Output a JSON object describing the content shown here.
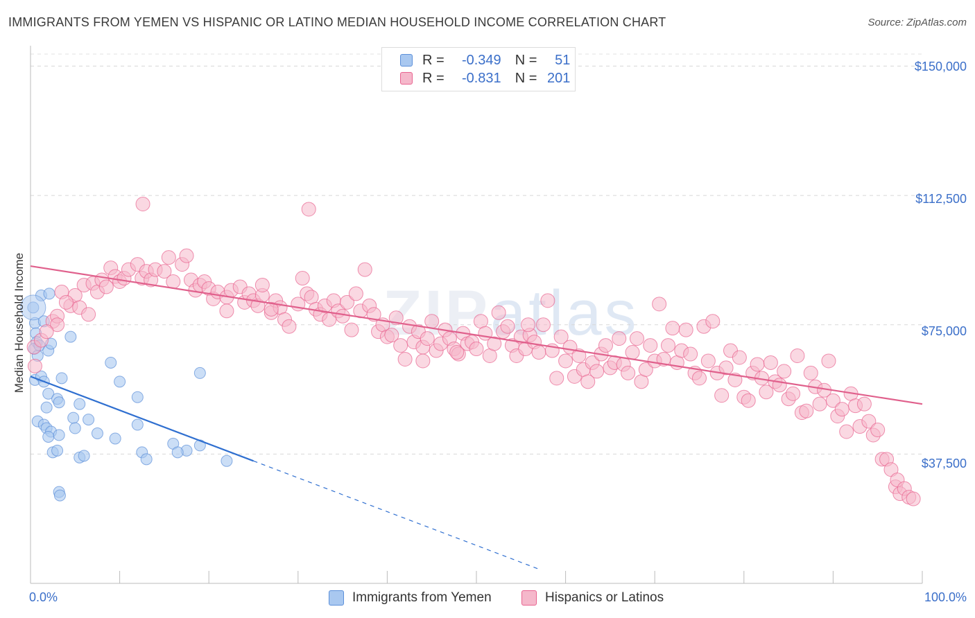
{
  "title": "IMMIGRANTS FROM YEMEN VS HISPANIC OR LATINO MEDIAN HOUSEHOLD INCOME CORRELATION CHART",
  "source": "Source: ZipAtlas.com",
  "watermark": {
    "zip": "ZIP",
    "atlas": "atlas"
  },
  "legend": {
    "rows": [
      {
        "r_label": "R =",
        "r_value": "-0.349",
        "n_label": "N =",
        "n_value": "51",
        "color": "#a9c8f0"
      },
      {
        "r_label": "R =",
        "r_value": "-0.831",
        "n_label": "N =",
        "n_value": "201",
        "color": "#f5b8cb"
      }
    ]
  },
  "chart_data": {
    "type": "scatter",
    "title": "IMMIGRANTS FROM YEMEN VS HISPANIC OR LATINO MEDIAN HOUSEHOLD INCOME CORRELATION CHART",
    "xlabel": "",
    "ylabel": "Median Household Income",
    "xlim": [
      0,
      100
    ],
    "ylim": [
      0,
      150000
    ],
    "x_tick_labels": [
      "0.0%",
      "100.0%"
    ],
    "y_ticks": [
      37500,
      75000,
      112500,
      150000
    ],
    "y_tick_labels": [
      "$37,500",
      "$75,000",
      "$112,500",
      "$150,000"
    ],
    "grid": "horizontal dashed",
    "legend_placement": "bottom",
    "series": [
      {
        "name": "Immigrants from Yemen",
        "color": "#5b8fd9",
        "fill": "#a9c8f0",
        "trend": {
          "x0": 0,
          "y0": 60000,
          "x1": 25,
          "y1": 35500,
          "dashed_to_x": 57
        },
        "points": [
          [
            0.3,
            80000
          ],
          [
            0.5,
            75500
          ],
          [
            0.6,
            72500
          ],
          [
            0.7,
            70000
          ],
          [
            0.4,
            68000
          ],
          [
            0.8,
            66000
          ],
          [
            1.0,
            69000
          ],
          [
            1.2,
            83500
          ],
          [
            1.5,
            76000
          ],
          [
            2.0,
            67500
          ],
          [
            2.3,
            69500
          ],
          [
            2.1,
            84000
          ],
          [
            4.5,
            71500
          ],
          [
            0.5,
            59000
          ],
          [
            1.2,
            60000
          ],
          [
            1.5,
            58500
          ],
          [
            3.5,
            59500
          ],
          [
            2.0,
            55000
          ],
          [
            1.8,
            51000
          ],
          [
            3.0,
            53500
          ],
          [
            3.2,
            52500
          ],
          [
            5.5,
            52000
          ],
          [
            0.8,
            47000
          ],
          [
            1.5,
            46000
          ],
          [
            1.8,
            45000
          ],
          [
            2.3,
            44000
          ],
          [
            2.0,
            42500
          ],
          [
            3.2,
            43000
          ],
          [
            4.8,
            48000
          ],
          [
            5.0,
            45000
          ],
          [
            6.5,
            47500
          ],
          [
            7.5,
            43500
          ],
          [
            9.5,
            42000
          ],
          [
            12.0,
            46000
          ],
          [
            2.5,
            38000
          ],
          [
            3.0,
            38500
          ],
          [
            5.5,
            36500
          ],
          [
            6.0,
            37000
          ],
          [
            12.5,
            38000
          ],
          [
            13.0,
            36000
          ],
          [
            17.5,
            38500
          ],
          [
            22.0,
            35500
          ],
          [
            3.2,
            26500
          ],
          [
            3.3,
            25500
          ],
          [
            9.0,
            64000
          ],
          [
            10.0,
            58500
          ],
          [
            12.0,
            54000
          ],
          [
            16.0,
            40500
          ],
          [
            16.5,
            38000
          ],
          [
            19.0,
            40000
          ],
          [
            19.0,
            61000
          ]
        ]
      },
      {
        "name": "Hispanics or Latinos",
        "color": "#e8628f",
        "fill": "#f5b8cb",
        "trend": {
          "x0": 0,
          "y0": 92000,
          "x1": 100,
          "y1": 52000
        },
        "points": [
          [
            0.4,
            68500
          ],
          [
            0.5,
            63000
          ],
          [
            1.2,
            70500
          ],
          [
            2.5,
            76000
          ],
          [
            3.0,
            77500
          ],
          [
            3.5,
            84500
          ],
          [
            4.5,
            80500
          ],
          [
            5.0,
            83500
          ],
          [
            5.5,
            80000
          ],
          [
            6.0,
            86500
          ],
          [
            7.0,
            87000
          ],
          [
            7.5,
            84500
          ],
          [
            8.0,
            88000
          ],
          [
            8.5,
            86000
          ],
          [
            9.0,
            91500
          ],
          [
            9.5,
            89000
          ],
          [
            10.0,
            87500
          ],
          [
            10.5,
            88500
          ],
          [
            11.0,
            91000
          ],
          [
            12.0,
            92500
          ],
          [
            12.5,
            88500
          ],
          [
            13.0,
            90500
          ],
          [
            13.5,
            88000
          ],
          [
            14.0,
            91000
          ],
          [
            15.0,
            90500
          ],
          [
            15.5,
            94500
          ],
          [
            16.0,
            87500
          ],
          [
            17.0,
            92500
          ],
          [
            17.5,
            95000
          ],
          [
            18.0,
            88000
          ],
          [
            18.5,
            85000
          ],
          [
            19.0,
            86500
          ],
          [
            19.5,
            87500
          ],
          [
            20.0,
            85500
          ],
          [
            20.5,
            82500
          ],
          [
            21.0,
            84500
          ],
          [
            22.0,
            83000
          ],
          [
            22.5,
            85000
          ],
          [
            23.5,
            86000
          ],
          [
            24.0,
            81500
          ],
          [
            24.5,
            84000
          ],
          [
            25.0,
            82000
          ],
          [
            25.5,
            80500
          ],
          [
            26.0,
            83500
          ],
          [
            27.0,
            78500
          ],
          [
            27.5,
            82000
          ],
          [
            28.0,
            80000
          ],
          [
            28.5,
            76500
          ],
          [
            29.0,
            74500
          ],
          [
            30.0,
            81000
          ],
          [
            30.5,
            88500
          ],
          [
            31.0,
            84000
          ],
          [
            31.5,
            83000
          ],
          [
            32.0,
            79500
          ],
          [
            32.5,
            78000
          ],
          [
            33.0,
            80500
          ],
          [
            33.5,
            76500
          ],
          [
            34.0,
            82000
          ],
          [
            34.5,
            79000
          ],
          [
            35.0,
            77500
          ],
          [
            35.5,
            81500
          ],
          [
            36.0,
            73500
          ],
          [
            36.5,
            84000
          ],
          [
            37.0,
            79000
          ],
          [
            37.5,
            91000
          ],
          [
            38.0,
            80500
          ],
          [
            38.5,
            78000
          ],
          [
            39.0,
            73000
          ],
          [
            39.5,
            75000
          ],
          [
            40.0,
            71500
          ],
          [
            40.5,
            72000
          ],
          [
            41.0,
            77000
          ],
          [
            41.5,
            69000
          ],
          [
            42.0,
            65000
          ],
          [
            42.5,
            74500
          ],
          [
            43.0,
            70000
          ],
          [
            43.5,
            73000
          ],
          [
            44.0,
            68500
          ],
          [
            44.5,
            71000
          ],
          [
            45.0,
            76000
          ],
          [
            45.5,
            67500
          ],
          [
            46.0,
            69500
          ],
          [
            46.5,
            73500
          ],
          [
            47.0,
            71000
          ],
          [
            47.5,
            68000
          ],
          [
            48.0,
            66500
          ],
          [
            48.5,
            72500
          ],
          [
            49.0,
            69500
          ],
          [
            49.5,
            70000
          ],
          [
            50.0,
            68000
          ],
          [
            50.5,
            76000
          ],
          [
            51.0,
            72500
          ],
          [
            51.5,
            66000
          ],
          [
            52.0,
            69500
          ],
          [
            52.5,
            78500
          ],
          [
            53.0,
            73000
          ],
          [
            53.5,
            74500
          ],
          [
            54.0,
            69000
          ],
          [
            54.5,
            66000
          ],
          [
            55.0,
            71500
          ],
          [
            55.5,
            68000
          ],
          [
            56.0,
            72000
          ],
          [
            56.5,
            70000
          ],
          [
            57.0,
            67000
          ],
          [
            57.5,
            75000
          ],
          [
            58.0,
            82000
          ],
          [
            58.5,
            67500
          ],
          [
            59.0,
            59500
          ],
          [
            59.5,
            71500
          ],
          [
            60.0,
            64500
          ],
          [
            60.5,
            68500
          ],
          [
            61.0,
            60000
          ],
          [
            61.5,
            66000
          ],
          [
            62.0,
            62000
          ],
          [
            62.5,
            58500
          ],
          [
            63.0,
            64000
          ],
          [
            63.5,
            61500
          ],
          [
            64.0,
            66500
          ],
          [
            64.5,
            69000
          ],
          [
            65.0,
            62500
          ],
          [
            65.5,
            64000
          ],
          [
            66.0,
            71000
          ],
          [
            66.5,
            63500
          ],
          [
            67.0,
            61000
          ],
          [
            67.5,
            67000
          ],
          [
            68.0,
            71000
          ],
          [
            68.5,
            58500
          ],
          [
            69.0,
            62000
          ],
          [
            69.5,
            69000
          ],
          [
            70.0,
            64500
          ],
          [
            70.5,
            81000
          ],
          [
            71.0,
            65000
          ],
          [
            71.5,
            69000
          ],
          [
            72.0,
            74000
          ],
          [
            72.5,
            64000
          ],
          [
            73.0,
            67500
          ],
          [
            73.5,
            73500
          ],
          [
            74.0,
            66500
          ],
          [
            74.5,
            61000
          ],
          [
            75.0,
            59500
          ],
          [
            75.5,
            74500
          ],
          [
            76.0,
            64500
          ],
          [
            76.5,
            76000
          ],
          [
            77.0,
            61000
          ],
          [
            77.5,
            54500
          ],
          [
            78.0,
            62500
          ],
          [
            78.5,
            67500
          ],
          [
            79.0,
            59000
          ],
          [
            79.5,
            65500
          ],
          [
            80.0,
            54000
          ],
          [
            80.5,
            53000
          ],
          [
            81.0,
            61000
          ],
          [
            81.5,
            63500
          ],
          [
            82.0,
            59500
          ],
          [
            82.5,
            55500
          ],
          [
            83.0,
            64000
          ],
          [
            83.5,
            58500
          ],
          [
            84.0,
            57500
          ],
          [
            84.5,
            61500
          ],
          [
            85.0,
            53500
          ],
          [
            85.5,
            55000
          ],
          [
            86.0,
            66000
          ],
          [
            86.5,
            49500
          ],
          [
            87.0,
            50000
          ],
          [
            87.5,
            61000
          ],
          [
            88.0,
            57000
          ],
          [
            88.5,
            52000
          ],
          [
            89.0,
            56000
          ],
          [
            89.5,
            64500
          ],
          [
            90.0,
            53000
          ],
          [
            90.5,
            48500
          ],
          [
            91.0,
            50500
          ],
          [
            91.5,
            44000
          ],
          [
            92.0,
            55000
          ],
          [
            92.5,
            51500
          ],
          [
            93.0,
            45500
          ],
          [
            93.5,
            52000
          ],
          [
            94.0,
            47000
          ],
          [
            94.5,
            43000
          ],
          [
            95.0,
            44500
          ],
          [
            95.5,
            36000
          ],
          [
            96.0,
            36000
          ],
          [
            96.5,
            33000
          ],
          [
            97.0,
            28000
          ],
          [
            97.5,
            26000
          ],
          [
            97.2,
            30000
          ],
          [
            98.0,
            27500
          ],
          [
            98.5,
            25000
          ],
          [
            99.0,
            24500
          ],
          [
            12.6,
            110000
          ],
          [
            31.2,
            108500
          ],
          [
            22.0,
            79000
          ],
          [
            27.0,
            79500
          ],
          [
            26.0,
            86500
          ],
          [
            44.0,
            64500
          ],
          [
            47.8,
            67000
          ],
          [
            55.8,
            75000
          ],
          [
            6.5,
            78000
          ],
          [
            3.0,
            75000
          ],
          [
            4.0,
            81500
          ],
          [
            1.8,
            73000
          ]
        ]
      }
    ]
  },
  "bottom_legend": [
    {
      "label": "Immigrants from Yemen",
      "color": "#a9c8f0",
      "border": "#5b8fd9"
    },
    {
      "label": "Hispanics or Latinos",
      "color": "#f5b8cb",
      "border": "#e8628f"
    }
  ]
}
